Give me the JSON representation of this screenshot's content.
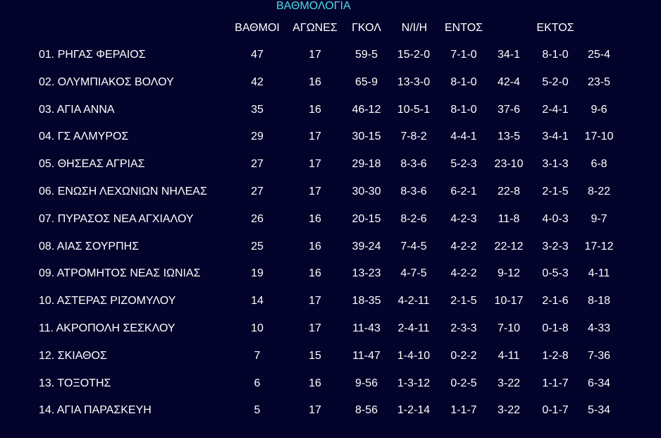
{
  "title": "ΒΑΘΜΟΛΟΓΙΑ",
  "headers": {
    "points": "ΒΑΘΜΟΙ",
    "matches": "ΑΓΩΝΕΣ",
    "goals": "ΓΚΟΛ",
    "wdl": "Ν/Ι/Η",
    "home": "ΕΝΤΟΣ",
    "away": "ΕΚΤΟΣ"
  },
  "colors": {
    "background": "#03032b",
    "title": "#4fdbea",
    "text": "#ffffff"
  },
  "rows": [
    [
      "01. ΡΗΓΑΣ ΦΕΡΑΙΟΣ",
      "47",
      "17",
      "59-5",
      "15-2-0",
      "7-1-0",
      "34-1",
      "8-1-0",
      "25-4"
    ],
    [
      "02. ΟΛΥΜΠΙΑΚΟΣ ΒΟΛΟΥ",
      "42",
      "16",
      "65-9",
      "13-3-0",
      "8-1-0",
      "42-4",
      "5-2-0",
      "23-5"
    ],
    [
      "03. ΑΓΙΑ ΑΝΝΑ",
      "35",
      "16",
      "46-12",
      "10-5-1",
      "8-1-0",
      "37-6",
      "2-4-1",
      "9-6"
    ],
    [
      "04. ΓΣ ΑΛΜΥΡΟΣ",
      "29",
      "17",
      "30-15",
      "7-8-2",
      "4-4-1",
      "13-5",
      "3-4-1",
      "17-10"
    ],
    [
      "05. ΘΗΣΕΑΣ ΑΓΡΙΑΣ",
      "27",
      "17",
      "29-18",
      "8-3-6",
      "5-2-3",
      "23-10",
      "3-1-3",
      "6-8"
    ],
    [
      "06. ΕΝΩΣΗ ΛΕΧΩΝΙΩΝ ΝΗΛΕΑΣ",
      "27",
      "17",
      "30-30",
      "8-3-6",
      "6-2-1",
      "22-8",
      "2-1-5",
      "8-22"
    ],
    [
      "07. ΠΥΡΑΣΟΣ ΝΕΑ ΑΓΧΙΑΛΟΥ",
      "26",
      "16",
      "20-15",
      "8-2-6",
      "4-2-3",
      "11-8",
      "4-0-3",
      "9-7"
    ],
    [
      "08. ΑΙΑΣ ΣΟΥΡΠΗΣ",
      "25",
      "16",
      "39-24",
      "7-4-5",
      "4-2-2",
      "22-12",
      "3-2-3",
      "17-12"
    ],
    [
      "09. ΑΤΡΟΜΗΤΟΣ ΝΕΑΣ ΙΩΝΙΑΣ",
      "19",
      "16",
      "13-23",
      "4-7-5",
      "4-2-2",
      "9-12",
      "0-5-3",
      "4-11"
    ],
    [
      "10. ΑΣΤΕΡΑΣ ΡΙΖΟΜΥΛΟΥ",
      "14",
      "17",
      "18-35",
      "4-2-11",
      "2-1-5",
      "10-17",
      "2-1-6",
      "8-18"
    ],
    [
      "11. ΑΚΡΟΠΟΛΗ ΣΕΣΚΛΟΥ",
      "10",
      "17",
      "11-43",
      "2-4-11",
      "2-3-3",
      "7-10",
      "0-1-8",
      "4-33"
    ],
    [
      "12. ΣΚΙΑΘΟΣ",
      "7",
      "15",
      "11-47",
      "1-4-10",
      "0-2-2",
      "4-11",
      "1-2-8",
      "7-36"
    ],
    [
      "13. ΤΟΞΟΤΗΣ",
      "6",
      "16",
      "9-56",
      "1-3-12",
      "0-2-5",
      "3-22",
      "1-1-7",
      "6-34"
    ],
    [
      "14. ΑΓΙΑ ΠΑΡΑΣΚΕΥΗ",
      "5",
      "17",
      "8-56",
      "1-2-14",
      "1-1-7",
      "3-22",
      "0-1-7",
      "5-34"
    ]
  ]
}
